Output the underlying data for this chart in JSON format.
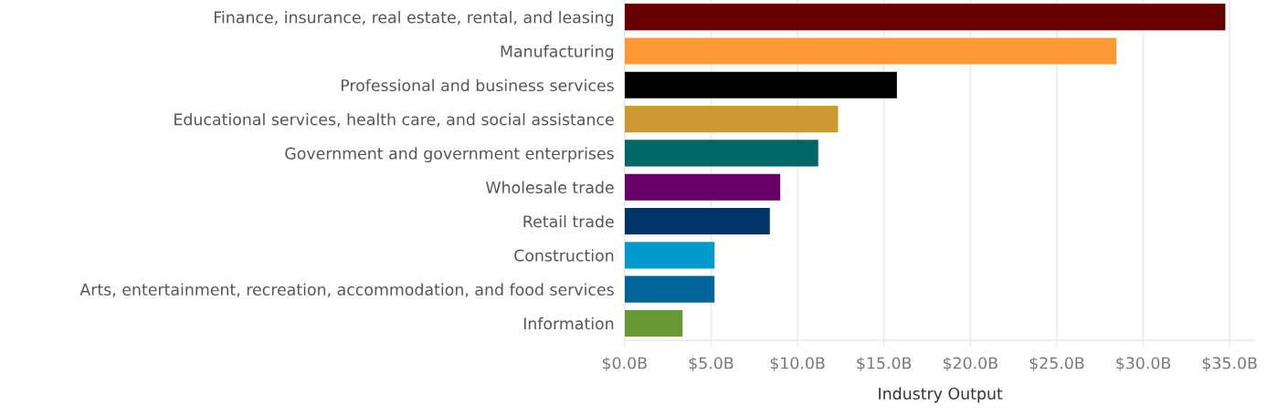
{
  "chart_data": {
    "type": "bar",
    "orientation": "horizontal",
    "xlabel": "Industry Output",
    "categories": [
      "Finance, insurance, real estate, rental, and leasing",
      "Manufacturing",
      "Professional and business services",
      "Educational services, health care, and social assistance",
      "Government and government enterprises",
      "Wholesale trade",
      "Retail trade",
      "Construction",
      "Arts, entertainment, recreation, accommodation, and food services",
      "Information"
    ],
    "values": [
      34.75,
      28.45,
      15.75,
      12.35,
      11.2,
      9.0,
      8.4,
      5.2,
      5.2,
      3.35
    ],
    "colors": [
      "#660000",
      "#ff9933",
      "#000000",
      "#cc9933",
      "#006666",
      "#660066",
      "#003366",
      "#0099cc",
      "#006699",
      "#669933"
    ],
    "xlim": [
      0,
      36.5
    ],
    "xticks": [
      {
        "value": 0,
        "label": "$0.0B"
      },
      {
        "value": 5,
        "label": "$5.0B"
      },
      {
        "value": 10,
        "label": "$10.0B"
      },
      {
        "value": 15,
        "label": "$15.0B"
      },
      {
        "value": 20,
        "label": "$20.0B"
      },
      {
        "value": 25,
        "label": "$25.0B"
      },
      {
        "value": 30,
        "label": "$30.0B"
      },
      {
        "value": 35,
        "label": "$35.0B"
      }
    ],
    "grid": "x",
    "legend": false
  }
}
